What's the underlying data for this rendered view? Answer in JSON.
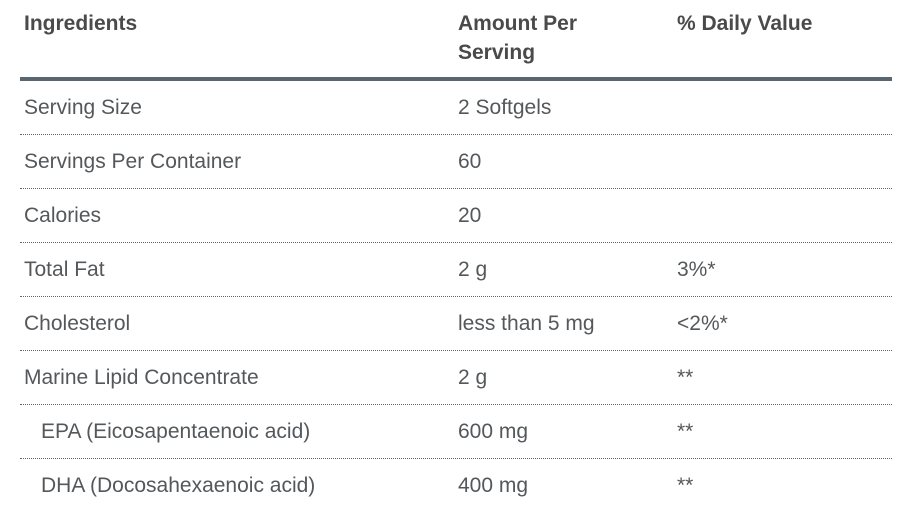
{
  "table": {
    "headers": {
      "ingredients": "Ingredients",
      "amount_per_serving": "Amount Per Serving",
      "daily_value": "% Daily Value"
    },
    "rows": [
      {
        "ingredient": "Serving Size",
        "amount": "2 Softgels",
        "daily_value": "",
        "indent": false
      },
      {
        "ingredient": "Servings Per Container",
        "amount": "60",
        "daily_value": "",
        "indent": false
      },
      {
        "ingredient": "Calories",
        "amount": "20",
        "daily_value": "",
        "indent": false
      },
      {
        "ingredient": "Total Fat",
        "amount": "2 g",
        "daily_value": "3%*",
        "indent": false
      },
      {
        "ingredient": "Cholesterol",
        "amount": "less than 5 mg",
        "daily_value": "<2%*",
        "indent": false
      },
      {
        "ingredient": "Marine Lipid Concentrate",
        "amount": "2 g",
        "daily_value": "**",
        "indent": false
      },
      {
        "ingredient": "EPA (Eicosapentaenoic acid)",
        "amount": "600 mg",
        "daily_value": "**",
        "indent": true
      },
      {
        "ingredient": "DHA (Docosahexaenoic acid)",
        "amount": "400 mg",
        "daily_value": "**",
        "indent": true
      }
    ],
    "colors": {
      "header_text": "#4a4a4a",
      "body_text": "#54585b",
      "rule": "#5b6770"
    }
  }
}
